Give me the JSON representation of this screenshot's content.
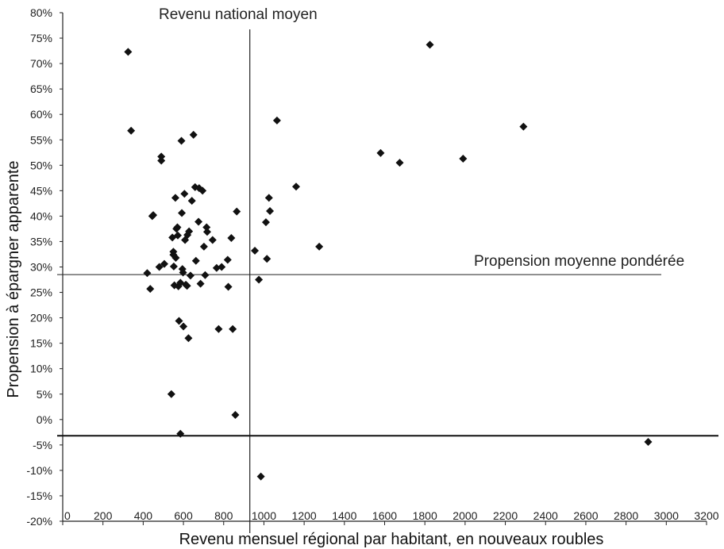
{
  "chart_data": {
    "type": "scatter",
    "xlabel": "Revenu mensuel régional par habitant, en nouveaux roubles",
    "ylabel": "Propension à épargner apparente",
    "xlim": [
      0,
      3200
    ],
    "ylim": [
      -20,
      80
    ],
    "x_ticks": [
      "0",
      "200",
      "400",
      "600",
      "800",
      "1000",
      "1200",
      "1400",
      "1600",
      "1800",
      "2000",
      "2200",
      "2400",
      "2600",
      "2800",
      "3000",
      "3200"
    ],
    "y_ticks": [
      "80%",
      "75%",
      "70%",
      "65%",
      "60%",
      "55%",
      "50%",
      "45%",
      "40%",
      "35%",
      "30%",
      "25%",
      "20%",
      "15%",
      "10%",
      "5%",
      "0%",
      "-5%",
      "-10%",
      "-15%",
      "-20%"
    ],
    "marker": "diamond",
    "marker_color": "#111111",
    "grid": false,
    "reference_lines": {
      "vertical": {
        "x": 930,
        "label": "Revenu national moyen"
      },
      "horizontal": {
        "y": 28.5,
        "label": "Propension moyenne pondérée"
      },
      "baseline": {
        "y": -3.2
      }
    },
    "points": [
      {
        "x": 325,
        "y": 72.3
      },
      {
        "x": 340,
        "y": 56.8
      },
      {
        "x": 420,
        "y": 28.8
      },
      {
        "x": 435,
        "y": 25.7
      },
      {
        "x": 445,
        "y": 40.0
      },
      {
        "x": 450,
        "y": 40.2
      },
      {
        "x": 480,
        "y": 30.0
      },
      {
        "x": 490,
        "y": 51.7
      },
      {
        "x": 490,
        "y": 50.9
      },
      {
        "x": 505,
        "y": 30.6
      },
      {
        "x": 540,
        "y": 5.0
      },
      {
        "x": 545,
        "y": 35.8
      },
      {
        "x": 550,
        "y": 33.0
      },
      {
        "x": 550,
        "y": 32.4
      },
      {
        "x": 552,
        "y": 30.1
      },
      {
        "x": 555,
        "y": 26.4
      },
      {
        "x": 560,
        "y": 43.6
      },
      {
        "x": 562,
        "y": 31.8
      },
      {
        "x": 565,
        "y": 37.5
      },
      {
        "x": 570,
        "y": 37.8
      },
      {
        "x": 572,
        "y": 36.2
      },
      {
        "x": 575,
        "y": 26.2
      },
      {
        "x": 578,
        "y": 19.4
      },
      {
        "x": 585,
        "y": 26.9
      },
      {
        "x": 585,
        "y": -2.8
      },
      {
        "x": 590,
        "y": 54.8
      },
      {
        "x": 592,
        "y": 40.6
      },
      {
        "x": 595,
        "y": 29.6
      },
      {
        "x": 598,
        "y": 28.9
      },
      {
        "x": 600,
        "y": 18.3
      },
      {
        "x": 605,
        "y": 44.4
      },
      {
        "x": 608,
        "y": 35.3
      },
      {
        "x": 612,
        "y": 26.5
      },
      {
        "x": 618,
        "y": 26.3
      },
      {
        "x": 620,
        "y": 36.3
      },
      {
        "x": 625,
        "y": 16.0
      },
      {
        "x": 628,
        "y": 37.0
      },
      {
        "x": 635,
        "y": 28.3
      },
      {
        "x": 642,
        "y": 43.0
      },
      {
        "x": 650,
        "y": 56.0
      },
      {
        "x": 658,
        "y": 45.7
      },
      {
        "x": 662,
        "y": 31.2
      },
      {
        "x": 675,
        "y": 38.9
      },
      {
        "x": 678,
        "y": 45.5
      },
      {
        "x": 685,
        "y": 26.7
      },
      {
        "x": 695,
        "y": 45.0
      },
      {
        "x": 702,
        "y": 34.0
      },
      {
        "x": 708,
        "y": 28.4
      },
      {
        "x": 715,
        "y": 37.8
      },
      {
        "x": 718,
        "y": 36.9
      },
      {
        "x": 745,
        "y": 35.3
      },
      {
        "x": 765,
        "y": 29.8
      },
      {
        "x": 775,
        "y": 17.8
      },
      {
        "x": 790,
        "y": 30.0
      },
      {
        "x": 820,
        "y": 31.4
      },
      {
        "x": 823,
        "y": 26.1
      },
      {
        "x": 838,
        "y": 35.7
      },
      {
        "x": 845,
        "y": 17.8
      },
      {
        "x": 858,
        "y": 0.9
      },
      {
        "x": 865,
        "y": 40.9
      },
      {
        "x": 955,
        "y": 33.2
      },
      {
        "x": 975,
        "y": 27.5
      },
      {
        "x": 985,
        "y": -11.2
      },
      {
        "x": 1010,
        "y": 38.8
      },
      {
        "x": 1015,
        "y": 31.6
      },
      {
        "x": 1025,
        "y": 43.6
      },
      {
        "x": 1030,
        "y": 41.0
      },
      {
        "x": 1065,
        "y": 58.8
      },
      {
        "x": 1160,
        "y": 45.8
      },
      {
        "x": 1275,
        "y": 34.0
      },
      {
        "x": 1580,
        "y": 52.4
      },
      {
        "x": 1675,
        "y": 50.5
      },
      {
        "x": 1825,
        "y": 73.7
      },
      {
        "x": 1990,
        "y": 51.3
      },
      {
        "x": 2290,
        "y": 57.6
      },
      {
        "x": 2910,
        "y": -4.4
      }
    ]
  }
}
